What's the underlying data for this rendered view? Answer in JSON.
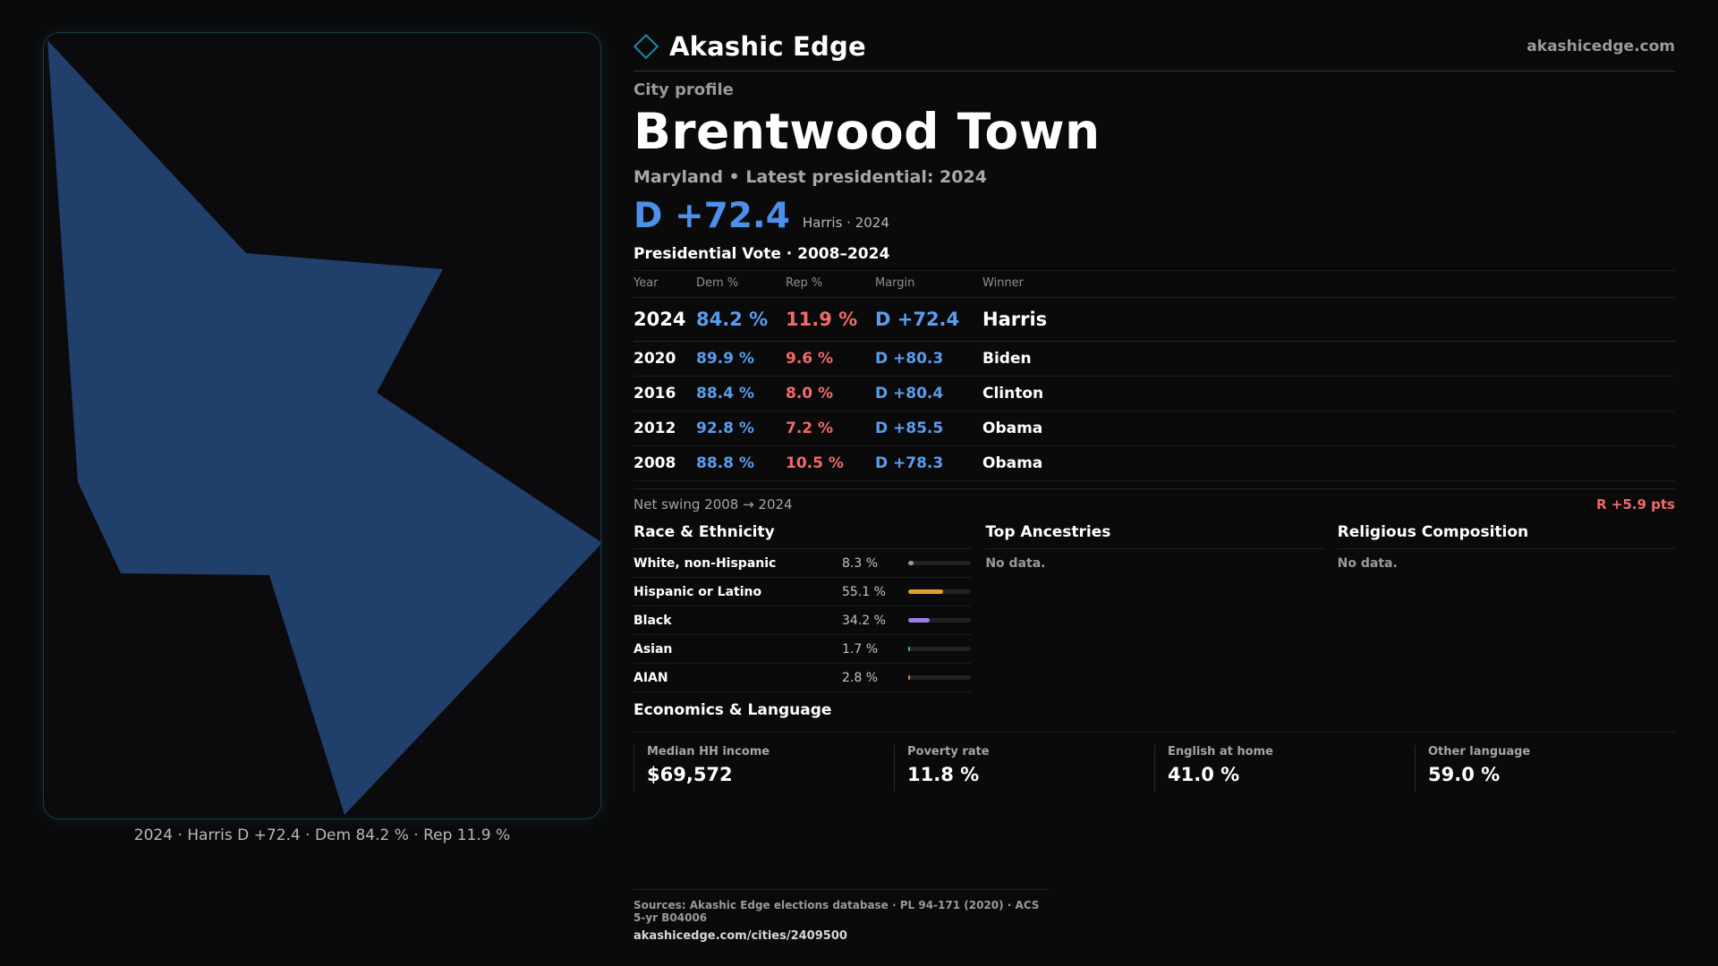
{
  "brand": {
    "name": "Akashic Edge",
    "url": "akashicedge.com"
  },
  "profile": {
    "eyebrow": "City profile",
    "city": "Brentwood Town",
    "subtitle": "Maryland • Latest presidential: 2024",
    "margin": "D +72.4",
    "margin_note": "Harris · 2024"
  },
  "map": {
    "caption": "2024 · Harris D +72.4 · Dem 84.2 % · Rep 11.9 %",
    "fill_color": "#203f6b"
  },
  "presidential": {
    "title": "Presidential Vote · 2008–2024",
    "headers": [
      "Year",
      "Dem %",
      "Rep %",
      "Margin",
      "Winner"
    ],
    "rows": [
      {
        "year": "2024",
        "dem": "84.2 %",
        "rep": "11.9 %",
        "margin": "D +72.4",
        "winner": "Harris"
      },
      {
        "year": "2020",
        "dem": "89.9 %",
        "rep": "9.6 %",
        "margin": "D +80.3",
        "winner": "Biden"
      },
      {
        "year": "2016",
        "dem": "88.4 %",
        "rep": "8.0 %",
        "margin": "D +80.4",
        "winner": "Clinton"
      },
      {
        "year": "2012",
        "dem": "92.8 %",
        "rep": "7.2 %",
        "margin": "D +85.5",
        "winner": "Obama"
      },
      {
        "year": "2008",
        "dem": "88.8 %",
        "rep": "10.5 %",
        "margin": "D +78.3",
        "winner": "Obama"
      }
    ]
  },
  "swing": {
    "label": "Net swing 2008 → 2024",
    "value": "R +5.9 pts"
  },
  "race": {
    "title": "Race & Ethnicity",
    "items": [
      {
        "name": "White, non-Hispanic",
        "pct": "8.3 %",
        "fraction": 0.083,
        "color": "#9a9a9a"
      },
      {
        "name": "Hispanic or Latino",
        "pct": "55.1 %",
        "fraction": 0.551,
        "color": "#e0a030"
      },
      {
        "name": "Black",
        "pct": "34.2 %",
        "fraction": 0.342,
        "color": "#9b7fe0"
      },
      {
        "name": "Asian",
        "pct": "1.7 %",
        "fraction": 0.017,
        "color": "#3fc1a0"
      },
      {
        "name": "AIAN",
        "pct": "2.8 %",
        "fraction": 0.028,
        "color": "#e07a3a"
      }
    ]
  },
  "ancestries": {
    "title": "Top Ancestries",
    "empty": "No data."
  },
  "religion": {
    "title": "Religious Composition",
    "empty": "No data."
  },
  "economics": {
    "title": "Economics & Language",
    "cells": [
      {
        "label": "Median HH income",
        "value": "$69,572"
      },
      {
        "label": "Poverty rate",
        "value": "11.8 %"
      },
      {
        "label": "English at home",
        "value": "41.0 %"
      },
      {
        "label": "Other language",
        "value": "59.0 %"
      }
    ]
  },
  "footer": {
    "sources": "Sources: Akashic Edge elections database · PL 94-171 (2020) · ACS 5-yr B04006",
    "url": "akashicedge.com/cities/2409500"
  }
}
